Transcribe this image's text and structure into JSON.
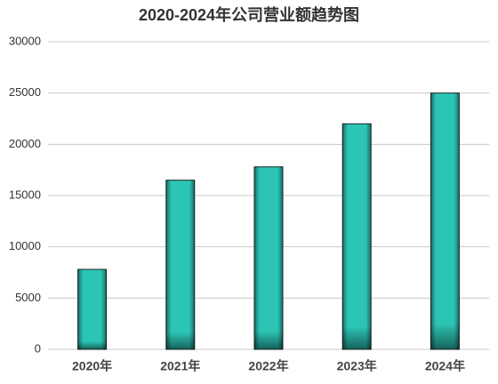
{
  "chart_data": {
    "type": "bar",
    "title": "2020-2024年公司营业额趋势图",
    "categories": [
      "2020年",
      "2021年",
      "2022年",
      "2023年",
      "2024年"
    ],
    "values": [
      7800,
      16500,
      17800,
      22000,
      25000
    ],
    "color": "#2cc4b4",
    "ylim": [
      0,
      30000
    ],
    "yticks": [
      0,
      5000,
      10000,
      15000,
      20000,
      25000,
      30000
    ],
    "grid": true
  }
}
